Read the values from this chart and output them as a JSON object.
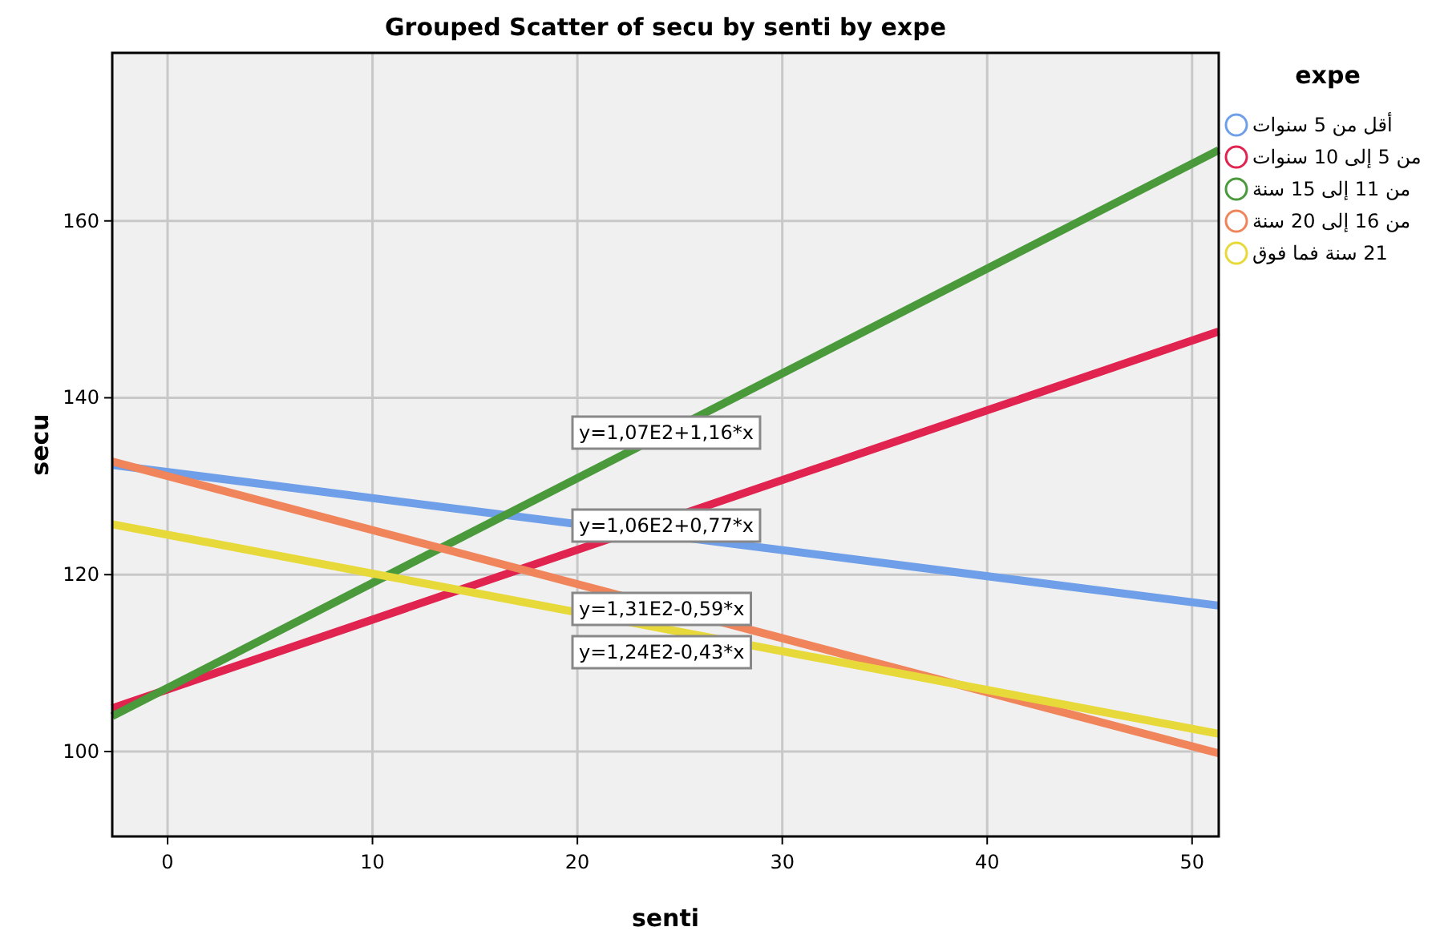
{
  "chart_data": {
    "type": "line",
    "title": "Grouped Scatter of secu by senti by expe",
    "xlabel": "senti",
    "ylabel": "secu",
    "legend_title": "expe",
    "legend": "top right",
    "grid": true,
    "xlim": [
      -2.7,
      51.3
    ],
    "ylim": [
      90.4,
      179
    ],
    "xticks": [
      0,
      10,
      20,
      30,
      40,
      50
    ],
    "yticks": [
      100,
      120,
      140,
      160
    ],
    "x": [
      -2.7,
      51.3
    ],
    "series": [
      {
        "name": "أقل من 5 سنوات",
        "color": "#6f9fe8",
        "values": [
          132.4,
          116.5
        ]
      },
      {
        "name": "من 5 إلى 10 سنوات",
        "color": "#e0234f",
        "values": [
          104.9,
          147.5
        ]
      },
      {
        "name": "من 11 إلى 15 سنة",
        "color": "#4a9a3c",
        "values": [
          104,
          168
        ]
      },
      {
        "name": "من 16 إلى 20 سنة",
        "color": "#f0845a",
        "values": [
          132.8,
          99.8
        ]
      },
      {
        "name": "21 سنة فما فوق",
        "color": "#e8d93a",
        "values": [
          125.7,
          102
        ]
      }
    ],
    "annotations": [
      "y=1,07E2+1,16*x",
      "y=1,06E2+0,77*x",
      "y=1,31E2-0,59*x",
      "y=1,24E2-0,43*x"
    ]
  }
}
